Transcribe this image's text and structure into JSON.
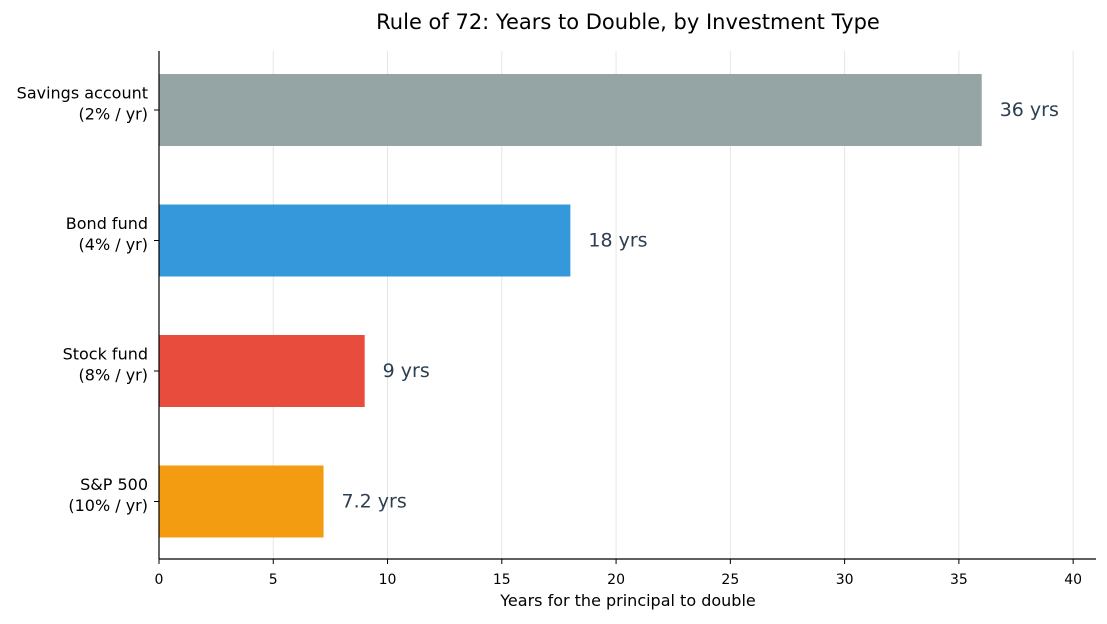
{
  "chart_data": {
    "type": "bar",
    "orientation": "horizontal",
    "title": "Rule of 72: Years to Double, by Investment Type",
    "xlabel": "Years for the principal to double",
    "ylabel": "",
    "xlim": [
      0,
      41
    ],
    "xticks": [
      0,
      5,
      10,
      15,
      20,
      25,
      30,
      35,
      40
    ],
    "grid": "vertical",
    "categories": [
      [
        "Savings account",
        "(2% / yr)"
      ],
      [
        "Bond fund",
        "(4% / yr)"
      ],
      [
        "Stock fund",
        "(8% / yr)"
      ],
      [
        "S&P 500",
        "(10% / yr)"
      ]
    ],
    "values": [
      36,
      18,
      9,
      7.2
    ],
    "value_labels": [
      "36 yrs",
      "18 yrs",
      "9 yrs",
      "7.2 yrs"
    ],
    "colors": [
      "#95a5a6",
      "#3498db",
      "#e74c3c",
      "#f39c12"
    ],
    "label_color": "#2c3e50"
  }
}
